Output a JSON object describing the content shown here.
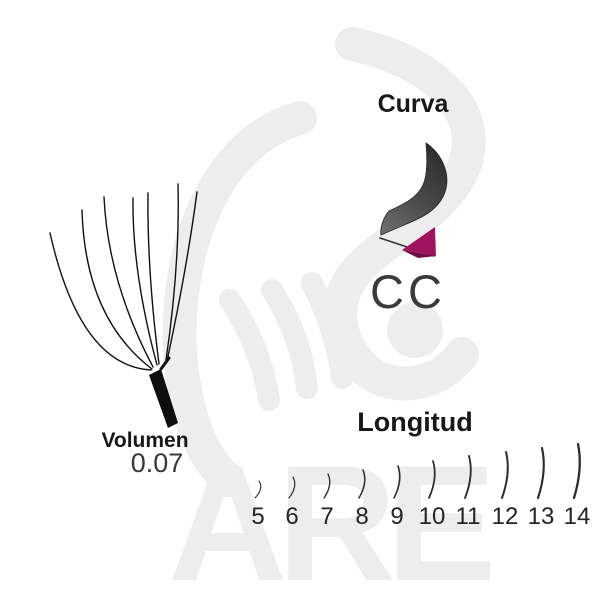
{
  "product": {
    "curve": {
      "title": "Curva",
      "code": "CC"
    },
    "volume": {
      "label": "Volumen",
      "value": "0.07"
    },
    "length": {
      "title": "Longitud",
      "sizes": [
        "5",
        "6",
        "7",
        "8",
        "9",
        "10",
        "11",
        "12",
        "13",
        "14"
      ]
    }
  },
  "watermark": {
    "text": "ARE"
  },
  "colors": {
    "background": "#ffffff",
    "heading_text": "#181818",
    "secondary_text": "#3a3a3a",
    "number_text": "#242424",
    "lash_stroke": "#2d2d2d",
    "fan_black": "#0e0e0e",
    "curl_dark": "#2e2e2e",
    "curl_light": "#6b6b6b",
    "curl_magenta": "#a0135f",
    "curl_magenta_dark": "#6e0d42",
    "watermark_gray": "#ededed"
  }
}
